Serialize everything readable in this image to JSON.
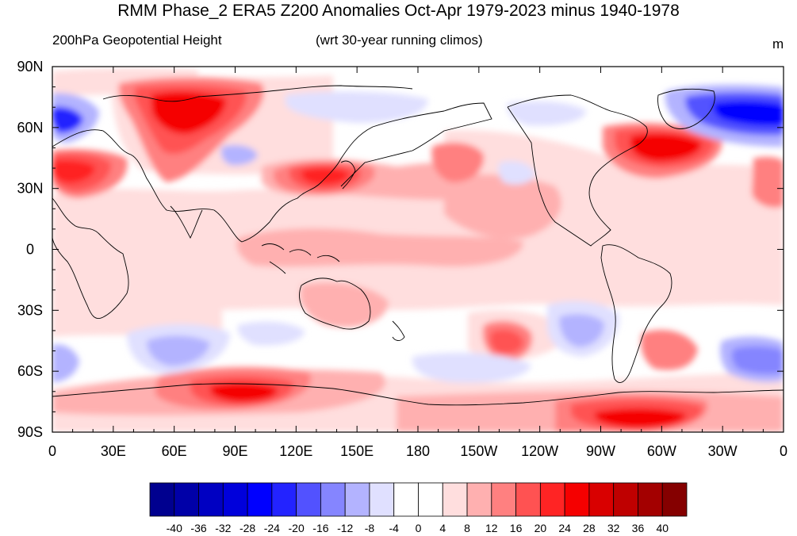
{
  "title": "RMM Phase_2 ERA5 Z200 Anomalies Oct-Apr 1979-2023 minus 1940-1978",
  "subtitle_left": "200hPa Geopotential Height",
  "subtitle_center": "(wrt 30-year running climos)",
  "units": "m",
  "map": {
    "lon_range": [
      0,
      360
    ],
    "lat_range": [
      -90,
      90
    ],
    "projection": "cylindrical-equidistant",
    "coastlines": true,
    "field": "Z200 anomaly"
  },
  "x_ticks": [
    "0",
    "30E",
    "60E",
    "90E",
    "120E",
    "150E",
    "180",
    "150W",
    "120W",
    "90W",
    "60W",
    "30W",
    "0"
  ],
  "y_ticks": [
    "90N",
    "60N",
    "30N",
    "0",
    "30S",
    "60S",
    "90S"
  ],
  "colorbar": {
    "labels": [
      "-40",
      "-36",
      "-32",
      "-28",
      "-24",
      "-20",
      "-16",
      "-12",
      "-8",
      "-4",
      "0",
      "4",
      "8",
      "12",
      "16",
      "20",
      "24",
      "28",
      "32",
      "36",
      "40"
    ],
    "colors": [
      "#00008f",
      "#0000a8",
      "#0000c2",
      "#0000db",
      "#0000ff",
      "#2323ff",
      "#5252ff",
      "#8585ff",
      "#b3b3ff",
      "#e0e0ff",
      "#ffffff",
      "#ffffff",
      "#ffdede",
      "#ffb0b0",
      "#ff8080",
      "#ff5252",
      "#ff2424",
      "#f50000",
      "#d90000",
      "#bf0000",
      "#a30000",
      "#850000"
    ]
  },
  "chart_data": {
    "type": "heatmap",
    "title": "RMM Phase_2 ERA5 Z200 Anomalies Oct-Apr 1979-2023 minus 1940-1978",
    "xlabel": "",
    "ylabel": "",
    "units": "m",
    "xlim": [
      0,
      360
    ],
    "ylim": [
      -90,
      90
    ],
    "features": [
      {
        "lon": 60,
        "lat": 63,
        "value": 32
      },
      {
        "lon": 5,
        "lat": 33,
        "value": 28
      },
      {
        "lon": 128,
        "lat": 36,
        "value": 26
      },
      {
        "lon": 140,
        "lat": 35,
        "value": 22
      },
      {
        "lon": 218,
        "lat": 42,
        "value": 18
      },
      {
        "lon": 300,
        "lat": 47,
        "value": 32
      },
      {
        "lon": 90,
        "lat": -72,
        "value": 28
      },
      {
        "lon": 300,
        "lat": -80,
        "value": 28
      },
      {
        "lon": 225,
        "lat": -45,
        "value": 20
      },
      {
        "lon": 130,
        "lat": -32,
        "value": 12
      },
      {
        "lon": 8,
        "lat": 63,
        "value": -24
      },
      {
        "lon": 335,
        "lat": 65,
        "value": -32
      },
      {
        "lon": 265,
        "lat": -42,
        "value": -12
      },
      {
        "lon": 60,
        "lat": -50,
        "value": -12
      },
      {
        "lon": 350,
        "lat": -57,
        "value": -16
      },
      {
        "lon": 95,
        "lat": 50,
        "value": -8
      },
      {
        "lon": 178,
        "lat": 60,
        "value": -8
      }
    ]
  }
}
